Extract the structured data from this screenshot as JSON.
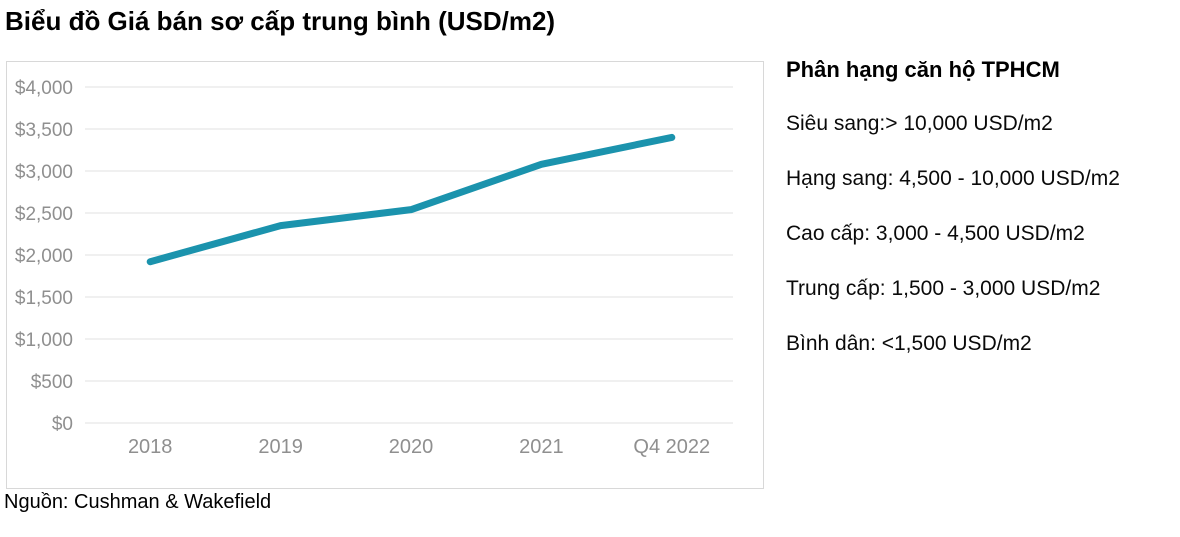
{
  "title": "Biểu đồ Giá bán sơ cấp trung bình (USD/m2)",
  "source": "Nguồn: Cushman & Wakefield",
  "colors": {
    "line": "#1b93ad",
    "grid": "#e7e7e7",
    "axis_text": "#8f8f8f",
    "chart_border": "#d8d8d8",
    "text": "#000000"
  },
  "chart_data": {
    "type": "line",
    "title": "Biểu đồ Giá bán sơ cấp trung bình (USD/m2)",
    "categories": [
      "2018",
      "2019",
      "2020",
      "2021",
      "Q4 2022"
    ],
    "series": [
      {
        "name": "Giá bán sơ cấp trung bình (USD/m2)",
        "values": [
          1920,
          2350,
          2540,
          3080,
          3400
        ]
      }
    ],
    "xlabel": "",
    "ylabel": "USD/m2",
    "ylim": [
      0,
      4000
    ],
    "ytick_step": 500,
    "ytick_labels": [
      "$0",
      "$500",
      "$1,000",
      "$1,500",
      "$2,000",
      "$2,500",
      "$3,000",
      "$3,500",
      "$4,000"
    ],
    "grid": "horizontal",
    "legend_position": "none",
    "line_width": 7
  },
  "classification_panel": {
    "heading": "Phân hạng căn hộ TPHCM",
    "items": [
      "Siêu sang:> 10,000 USD/m2",
      "Hạng sang: 4,500 - 10,000 USD/m2",
      "Cao cấp: 3,000 - 4,500 USD/m2",
      "Trung cấp: 1,500 - 3,000 USD/m2",
      "Bình dân: <1,500 USD/m2"
    ]
  }
}
